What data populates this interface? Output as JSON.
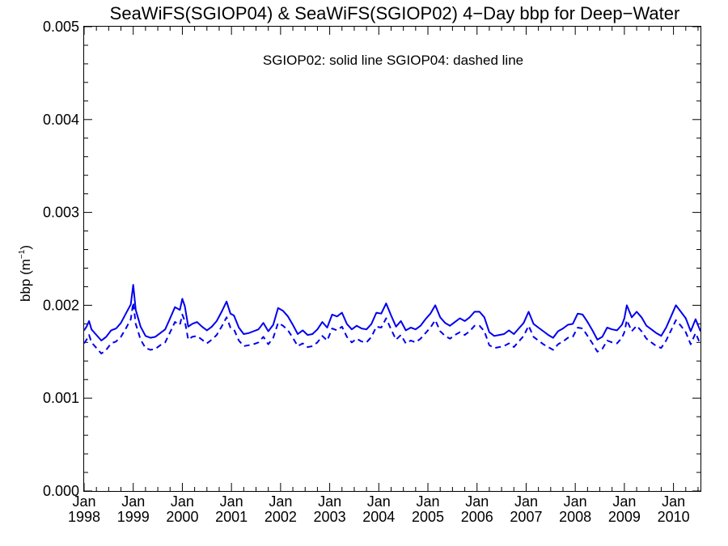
{
  "chart_data": {
    "type": "line",
    "title": "SeaWiFS(SGIOP04) & SeaWiFS(SGIOP02) 4−Day bbp for Deep−Water",
    "annotation": "SGIOP02: solid line   SGIOP04: dashed line",
    "ylabel_main": "bbp (m",
    "ylabel_sup": "−1",
    "ylabel_close": ")",
    "ylim": [
      0.0,
      0.005
    ],
    "xlim": [
      1998.0,
      2010.55
    ],
    "yticks": [
      {
        "v": 0.0,
        "label": "0.000"
      },
      {
        "v": 0.001,
        "label": "0.001"
      },
      {
        "v": 0.002,
        "label": "0.002"
      },
      {
        "v": 0.003,
        "label": "0.003"
      },
      {
        "v": 0.004,
        "label": "0.004"
      },
      {
        "v": 0.005,
        "label": "0.005"
      }
    ],
    "xticks": [
      {
        "v": 1998,
        "month": "Jan",
        "year": "1998"
      },
      {
        "v": 1999,
        "month": "Jan",
        "year": "1999"
      },
      {
        "v": 2000,
        "month": "Jan",
        "year": "2000"
      },
      {
        "v": 2001,
        "month": "Jan",
        "year": "2001"
      },
      {
        "v": 2002,
        "month": "Jan",
        "year": "2002"
      },
      {
        "v": 2003,
        "month": "Jan",
        "year": "2003"
      },
      {
        "v": 2004,
        "month": "Jan",
        "year": "2004"
      },
      {
        "v": 2005,
        "month": "Jan",
        "year": "2005"
      },
      {
        "v": 2006,
        "month": "Jan",
        "year": "2006"
      },
      {
        "v": 2007,
        "month": "Jan",
        "year": "2007"
      },
      {
        "v": 2008,
        "month": "Jan",
        "year": "2008"
      },
      {
        "v": 2009,
        "month": "Jan",
        "year": "2009"
      },
      {
        "v": 2010,
        "month": "Jan",
        "year": "2010"
      }
    ],
    "grid": false,
    "series": [
      {
        "name": "SGIOP02",
        "style": "solid",
        "color": "#0000ee",
        "x": [
          1998.0,
          1998.05,
          1998.1,
          1998.15,
          1998.25,
          1998.35,
          1998.45,
          1998.55,
          1998.65,
          1998.75,
          1998.85,
          1998.95,
          1999.0,
          1999.05,
          1999.15,
          1999.25,
          1999.35,
          1999.45,
          1999.55,
          1999.65,
          1999.75,
          1999.85,
          1999.95,
          2000.0,
          2000.05,
          2000.12,
          2000.2,
          2000.3,
          2000.4,
          2000.5,
          2000.6,
          2000.7,
          2000.8,
          2000.9,
          2000.98,
          2001.05,
          2001.15,
          2001.25,
          2001.35,
          2001.45,
          2001.55,
          2001.65,
          2001.75,
          2001.85,
          2001.95,
          2002.05,
          2002.15,
          2002.25,
          2002.35,
          2002.45,
          2002.55,
          2002.65,
          2002.75,
          2002.85,
          2002.95,
          2003.05,
          2003.15,
          2003.25,
          2003.35,
          2003.45,
          2003.55,
          2003.65,
          2003.75,
          2003.85,
          2003.95,
          2004.05,
          2004.15,
          2004.25,
          2004.35,
          2004.45,
          2004.55,
          2004.65,
          2004.75,
          2004.85,
          2004.95,
          2005.05,
          2005.15,
          2005.25,
          2005.35,
          2005.45,
          2005.55,
          2005.65,
          2005.75,
          2005.85,
          2005.95,
          2006.05,
          2006.15,
          2006.25,
          2006.35,
          2006.45,
          2006.55,
          2006.65,
          2006.75,
          2006.85,
          2006.95,
          2007.05,
          2007.15,
          2007.25,
          2007.35,
          2007.45,
          2007.55,
          2007.65,
          2007.75,
          2007.85,
          2007.95,
          2008.05,
          2008.15,
          2008.25,
          2008.35,
          2008.45,
          2008.55,
          2008.65,
          2008.75,
          2008.85,
          2008.95,
          2009.0,
          2009.05,
          2009.15,
          2009.25,
          2009.35,
          2009.45,
          2009.55,
          2009.65,
          2009.75,
          2009.85,
          2009.95,
          2010.05,
          2010.15,
          2010.25,
          2010.35,
          2010.45,
          2010.55
        ],
        "y": [
          0.00173,
          0.00177,
          0.00183,
          0.00174,
          0.00168,
          0.00162,
          0.00166,
          0.00173,
          0.00175,
          0.00181,
          0.00191,
          0.00201,
          0.00222,
          0.00195,
          0.00177,
          0.00167,
          0.00165,
          0.00166,
          0.0017,
          0.00174,
          0.00186,
          0.00198,
          0.00195,
          0.00207,
          0.00199,
          0.00177,
          0.0018,
          0.00182,
          0.00177,
          0.00173,
          0.00177,
          0.00183,
          0.00193,
          0.00204,
          0.00191,
          0.00189,
          0.00176,
          0.00169,
          0.0017,
          0.00172,
          0.00174,
          0.00181,
          0.00172,
          0.00179,
          0.00197,
          0.00194,
          0.00188,
          0.00179,
          0.00169,
          0.00173,
          0.00168,
          0.00169,
          0.00174,
          0.00182,
          0.00176,
          0.0019,
          0.00188,
          0.00192,
          0.0018,
          0.00174,
          0.00178,
          0.00175,
          0.00174,
          0.0018,
          0.00192,
          0.00191,
          0.00202,
          0.00189,
          0.00177,
          0.00183,
          0.00173,
          0.00176,
          0.00174,
          0.00178,
          0.00185,
          0.00191,
          0.002,
          0.00187,
          0.00181,
          0.00178,
          0.00182,
          0.00186,
          0.00183,
          0.00187,
          0.00193,
          0.00193,
          0.00187,
          0.00171,
          0.00167,
          0.00168,
          0.00169,
          0.00173,
          0.00169,
          0.00175,
          0.00181,
          0.00193,
          0.0018,
          0.00176,
          0.00172,
          0.00168,
          0.00165,
          0.00172,
          0.00175,
          0.00179,
          0.0018,
          0.00191,
          0.0019,
          0.00182,
          0.00173,
          0.00163,
          0.00166,
          0.00176,
          0.00174,
          0.00173,
          0.00179,
          0.00186,
          0.002,
          0.00187,
          0.00193,
          0.00187,
          0.00178,
          0.00174,
          0.0017,
          0.00167,
          0.00176,
          0.00188,
          0.002,
          0.00193,
          0.00186,
          0.00172,
          0.00185,
          0.00172
        ]
      },
      {
        "name": "SGIOP04",
        "style": "dashed",
        "color": "#0000ee",
        "x": [
          1998.0,
          1998.05,
          1998.1,
          1998.15,
          1998.25,
          1998.35,
          1998.45,
          1998.55,
          1998.65,
          1998.75,
          1998.85,
          1998.95,
          1999.0,
          1999.05,
          1999.15,
          1999.25,
          1999.35,
          1999.45,
          1999.55,
          1999.65,
          1999.75,
          1999.85,
          1999.95,
          2000.0,
          2000.05,
          2000.12,
          2000.2,
          2000.3,
          2000.4,
          2000.5,
          2000.6,
          2000.7,
          2000.8,
          2000.9,
          2000.98,
          2001.05,
          2001.15,
          2001.25,
          2001.35,
          2001.45,
          2001.55,
          2001.65,
          2001.75,
          2001.85,
          2001.95,
          2002.05,
          2002.15,
          2002.25,
          2002.35,
          2002.45,
          2002.55,
          2002.65,
          2002.75,
          2002.85,
          2002.95,
          2003.05,
          2003.15,
          2003.25,
          2003.35,
          2003.45,
          2003.55,
          2003.65,
          2003.75,
          2003.85,
          2003.95,
          2004.05,
          2004.15,
          2004.25,
          2004.35,
          2004.45,
          2004.55,
          2004.65,
          2004.75,
          2004.85,
          2004.95,
          2005.05,
          2005.15,
          2005.25,
          2005.35,
          2005.45,
          2005.55,
          2005.65,
          2005.75,
          2005.85,
          2005.95,
          2006.05,
          2006.15,
          2006.25,
          2006.35,
          2006.45,
          2006.55,
          2006.65,
          2006.75,
          2006.85,
          2006.95,
          2007.05,
          2007.15,
          2007.25,
          2007.35,
          2007.45,
          2007.55,
          2007.65,
          2007.75,
          2007.85,
          2007.95,
          2008.05,
          2008.15,
          2008.25,
          2008.35,
          2008.45,
          2008.55,
          2008.65,
          2008.75,
          2008.85,
          2008.95,
          2009.0,
          2009.05,
          2009.15,
          2009.25,
          2009.35,
          2009.45,
          2009.55,
          2009.65,
          2009.75,
          2009.85,
          2009.95,
          2010.05,
          2010.15,
          2010.25,
          2010.35,
          2010.45,
          2010.55
        ],
        "y": [
          0.00159,
          0.00163,
          0.00168,
          0.0016,
          0.00154,
          0.00148,
          0.00152,
          0.00159,
          0.00161,
          0.00166,
          0.00175,
          0.00185,
          0.00203,
          0.0018,
          0.00163,
          0.00154,
          0.00152,
          0.00153,
          0.00157,
          0.0016,
          0.00171,
          0.00182,
          0.00179,
          0.0019,
          0.00183,
          0.00163,
          0.00166,
          0.00167,
          0.00163,
          0.00159,
          0.00163,
          0.00168,
          0.00177,
          0.00187,
          0.00176,
          0.00174,
          0.00162,
          0.00156,
          0.00157,
          0.00158,
          0.0016,
          0.00166,
          0.00158,
          0.00165,
          0.00181,
          0.00178,
          0.00173,
          0.00165,
          0.00156,
          0.00159,
          0.00155,
          0.00156,
          0.0016,
          0.00167,
          0.00162,
          0.00175,
          0.00173,
          0.00177,
          0.00166,
          0.0016,
          0.00164,
          0.00161,
          0.0016,
          0.00166,
          0.00177,
          0.00176,
          0.00186,
          0.00174,
          0.00163,
          0.00168,
          0.00159,
          0.00162,
          0.0016,
          0.00164,
          0.0017,
          0.00176,
          0.00184,
          0.00172,
          0.00167,
          0.00164,
          0.00168,
          0.00171,
          0.00168,
          0.00172,
          0.00178,
          0.00178,
          0.00172,
          0.00157,
          0.00154,
          0.00155,
          0.00156,
          0.00159,
          0.00155,
          0.00161,
          0.00167,
          0.00178,
          0.00166,
          0.00162,
          0.00158,
          0.00155,
          0.00152,
          0.00158,
          0.00161,
          0.00165,
          0.00166,
          0.00176,
          0.00175,
          0.00167,
          0.00159,
          0.0015,
          0.00153,
          0.00162,
          0.0016,
          0.00159,
          0.00165,
          0.00171,
          0.00184,
          0.00172,
          0.00178,
          0.00172,
          0.00164,
          0.0016,
          0.00156,
          0.00154,
          0.00162,
          0.00173,
          0.00184,
          0.00178,
          0.00171,
          0.00158,
          0.0017,
          0.00158
        ]
      }
    ]
  }
}
